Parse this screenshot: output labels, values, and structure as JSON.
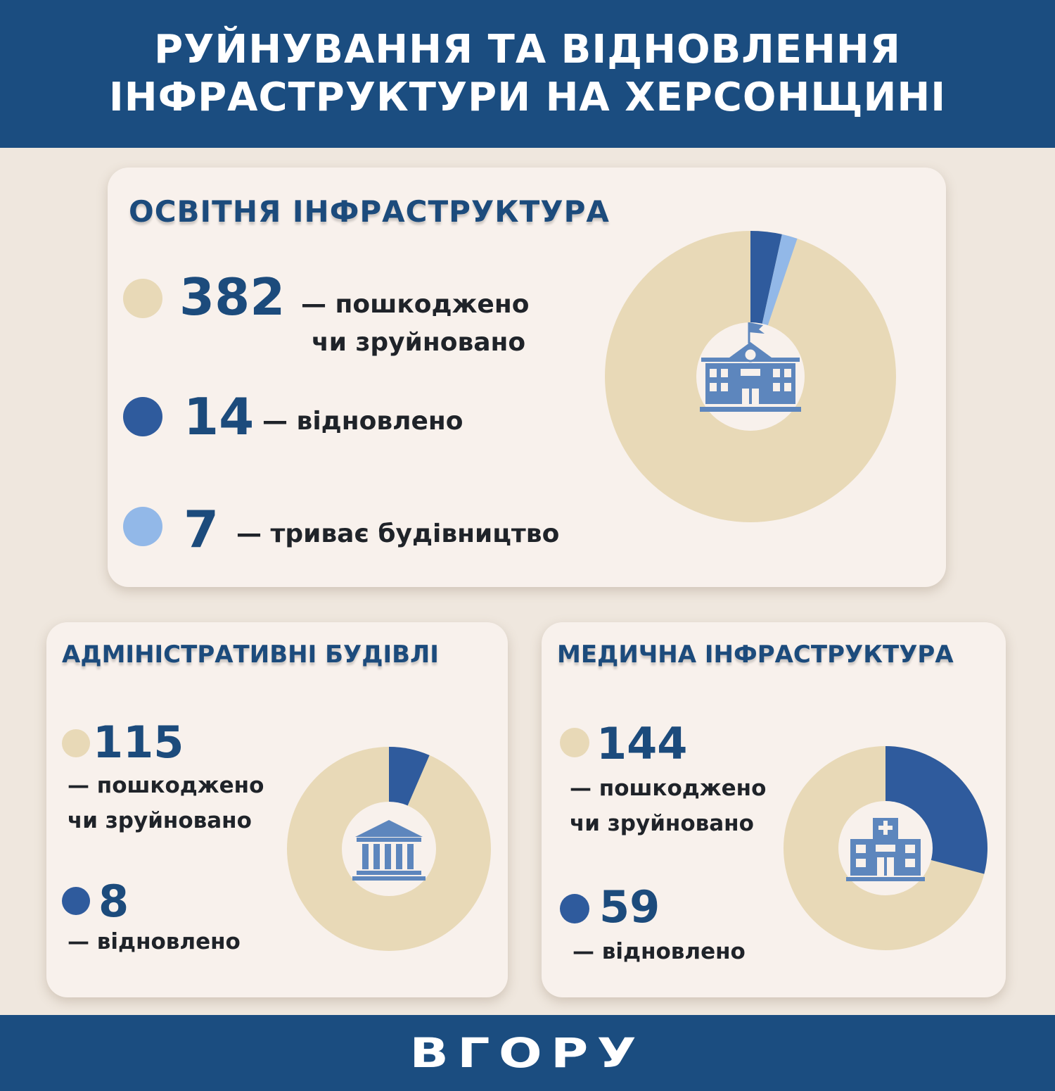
{
  "header": {
    "line1": "РУЙНУВАННЯ ТА ВІДНОВЛЕННЯ",
    "line2": "ІНФРАСТРУКТУРИ НА ХЕРСОНЩИНІ"
  },
  "colors": {
    "damaged": "#e8d9b7",
    "restored": "#2f5b9d",
    "construction": "#92b8e8",
    "brand": "#1b4d80"
  },
  "education": {
    "title": "ОСВІТНЯ ІНФРАСТРУКТУРА",
    "icon": "school-building-icon",
    "damaged_value": "382",
    "damaged_label_1": "— пошкоджено",
    "damaged_label_2": "чи зруйновано",
    "restored_value": "14",
    "restored_label": "— відновлено",
    "construction_value": "7",
    "construction_label": "— триває будівництво"
  },
  "admin": {
    "title": "АДМІНІСТРАТИВНІ БУДІВЛІ",
    "icon": "government-building-icon",
    "damaged_value": "115",
    "damaged_label_1": "— пошкоджено",
    "damaged_label_2": "чи зруйновано",
    "restored_value": "8",
    "restored_label": "— відновлено"
  },
  "medical": {
    "title": "МЕДИЧНА ІНФРАСТРУКТУРА",
    "icon": "hospital-icon",
    "damaged_value": "144",
    "damaged_label_1": "— пошкоджено",
    "damaged_label_2": "чи зруйновано",
    "restored_value": "59",
    "restored_label": "— відновлено"
  },
  "footer": {
    "logo": "ВГОРУ"
  },
  "chart_data": [
    {
      "type": "pie",
      "title": "ОСВІТНЯ ІНФРАСТРУКТУРА",
      "categories": [
        "пошкоджено чи зруйновано",
        "відновлено",
        "триває будівництво"
      ],
      "values": [
        382,
        14,
        7
      ],
      "donut": true
    },
    {
      "type": "pie",
      "title": "АДМІНІСТРАТИВНІ БУДІВЛІ",
      "categories": [
        "пошкоджено чи зруйновано",
        "відновлено"
      ],
      "values": [
        115,
        8
      ],
      "donut": true
    },
    {
      "type": "pie",
      "title": "МЕДИЧНА ІНФРАСТРУКТУРА",
      "categories": [
        "пошкоджено чи зруйновано",
        "відновлено"
      ],
      "values": [
        144,
        59
      ],
      "donut": true
    }
  ]
}
